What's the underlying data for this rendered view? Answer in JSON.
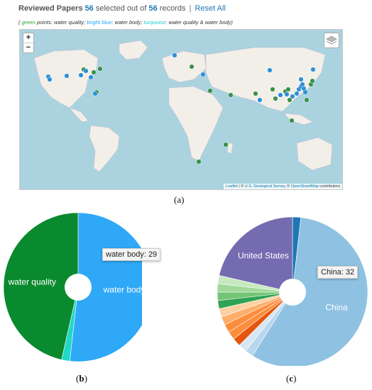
{
  "header": {
    "title": "Reviewed Papers",
    "selected": "56",
    "selected_text": "selected out of",
    "total": "56",
    "records_text": "records",
    "separator": "|",
    "reset_label": "Reset All"
  },
  "legend_note": {
    "open": "(",
    "green": "green",
    "green_desc": "points: water quality;",
    "blue": "bright blue",
    "blue_desc": ": water body;",
    "turq": "turquoise",
    "turq_desc": ": water quality & water body)"
  },
  "map": {
    "zoom_in": "+",
    "zoom_out": "−",
    "attribution": {
      "leaflet": "Leaflet",
      "sep1": "|",
      "copy1": "©",
      "usgs": "U.S. Geological Survey",
      "comma": ",",
      "copy2": "©",
      "osm": "OpenStreetMap",
      "contributors": "contributors"
    },
    "colors": {
      "water_quality": "#3a8f4a",
      "water_body": "#2b8fd8",
      "both": "#2bc0c0"
    }
  },
  "captions": {
    "a": "(a)",
    "b_open": "(",
    "b_letter": "b",
    "b_close": ")",
    "c_open": "(",
    "c_letter": "c",
    "c_close": ")"
  },
  "chart_data": [
    {
      "type": "pie",
      "slices": [
        {
          "label": "water body",
          "value": 29,
          "color": "#2ea8f7"
        },
        {
          "label": "",
          "value": 1,
          "color": "#20d8c8"
        },
        {
          "label": "water quality",
          "value": 26,
          "color": "#0a8a2e"
        }
      ],
      "tooltip": {
        "label": "water body",
        "value": "29",
        "sep": ":"
      }
    },
    {
      "type": "pie",
      "slices": [
        {
          "label": "",
          "value": 1,
          "color": "#1f77b4"
        },
        {
          "label": "China",
          "value": 32,
          "color": "#8fc2e2"
        },
        {
          "label": "",
          "value": 1,
          "color": "#b8d7ec"
        },
        {
          "label": "",
          "value": 1,
          "color": "#d6e7f3"
        },
        {
          "label": "",
          "value": 1,
          "color": "#e6550d"
        },
        {
          "label": "",
          "value": 1,
          "color": "#fd8d3c"
        },
        {
          "label": "",
          "value": 1,
          "color": "#fd8d3c"
        },
        {
          "label": "",
          "value": 1,
          "color": "#fdae6b"
        },
        {
          "label": "",
          "value": 1,
          "color": "#fdd0a2"
        },
        {
          "label": "",
          "value": 1,
          "color": "#31a354"
        },
        {
          "label": "",
          "value": 1,
          "color": "#74c476"
        },
        {
          "label": "",
          "value": 1,
          "color": "#a1d99b"
        },
        {
          "label": "",
          "value": 1,
          "color": "#c7e9c0"
        },
        {
          "label": "United States",
          "value": 12,
          "color": "#756bb1"
        }
      ],
      "tooltip": {
        "label": "China",
        "value": "32",
        "sep": ":"
      }
    }
  ]
}
